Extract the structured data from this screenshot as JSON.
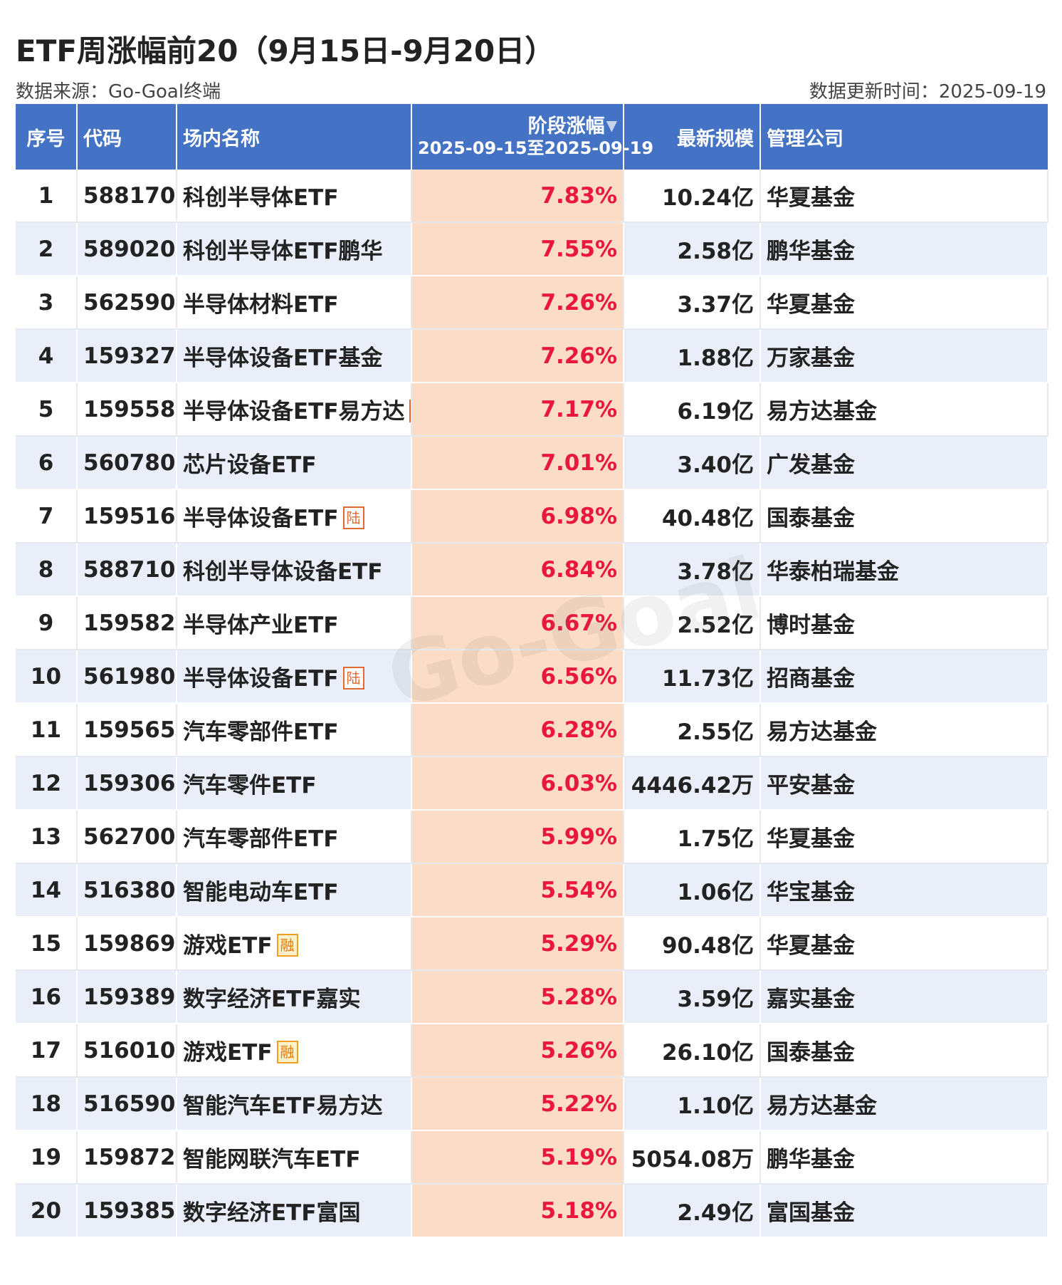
{
  "title": "ETF周涨幅前20（9月15日-9月20日）",
  "source": "数据来源：Go-Goal终端",
  "updated": "数据更新时间：2025-09-19",
  "watermark": "Go-Goal",
  "columns": {
    "rank": "序号",
    "code": "代码",
    "name": "场内名称",
    "period": "阶段涨幅",
    "period_range": "2025-09-15至2025-09-19",
    "scale": "最新规模",
    "manager": "管理公司"
  },
  "colors": {
    "header_bg": "#4472c4",
    "row_alt": "#e9eef8",
    "pct_bg": "#fbdcc6",
    "pct_text": "#e8173b"
  },
  "chart_data": {
    "type": "table",
    "title": "ETF周涨幅前20（9月15日-9月20日）",
    "rows": [
      {
        "rank": "1",
        "code": "588170",
        "name": "科创半导体ETF",
        "badge": "",
        "pct": "7.83%",
        "scale": "10.24亿",
        "manager": "华夏基金"
      },
      {
        "rank": "2",
        "code": "589020",
        "name": "科创半导体ETF鹏华",
        "badge": "",
        "pct": "7.55%",
        "scale": "2.58亿",
        "manager": "鹏华基金"
      },
      {
        "rank": "3",
        "code": "562590",
        "name": "半导体材料ETF",
        "badge": "",
        "pct": "7.26%",
        "scale": "3.37亿",
        "manager": "华夏基金"
      },
      {
        "rank": "4",
        "code": "159327",
        "name": "半导体设备ETF基金",
        "badge": "",
        "pct": "7.26%",
        "scale": "1.88亿",
        "manager": "万家基金"
      },
      {
        "rank": "5",
        "code": "159558",
        "name": "半导体设备ETF易方达",
        "badge": "陆",
        "pct": "7.17%",
        "scale": "6.19亿",
        "manager": "易方达基金"
      },
      {
        "rank": "6",
        "code": "560780",
        "name": "芯片设备ETF",
        "badge": "",
        "pct": "7.01%",
        "scale": "3.40亿",
        "manager": "广发基金"
      },
      {
        "rank": "7",
        "code": "159516",
        "name": "半导体设备ETF",
        "badge": "陆",
        "pct": "6.98%",
        "scale": "40.48亿",
        "manager": "国泰基金"
      },
      {
        "rank": "8",
        "code": "588710",
        "name": "科创半导体设备ETF",
        "badge": "",
        "pct": "6.84%",
        "scale": "3.78亿",
        "manager": "华泰柏瑞基金"
      },
      {
        "rank": "9",
        "code": "159582",
        "name": "半导体产业ETF",
        "badge": "",
        "pct": "6.67%",
        "scale": "2.52亿",
        "manager": "博时基金"
      },
      {
        "rank": "10",
        "code": "561980",
        "name": "半导体设备ETF",
        "badge": "陆",
        "pct": "6.56%",
        "scale": "11.73亿",
        "manager": "招商基金"
      },
      {
        "rank": "11",
        "code": "159565",
        "name": "汽车零部件ETF",
        "badge": "",
        "pct": "6.28%",
        "scale": "2.55亿",
        "manager": "易方达基金"
      },
      {
        "rank": "12",
        "code": "159306",
        "name": "汽车零件ETF",
        "badge": "",
        "pct": "6.03%",
        "scale": "4446.42万",
        "manager": "平安基金"
      },
      {
        "rank": "13",
        "code": "562700",
        "name": "汽车零部件ETF",
        "badge": "",
        "pct": "5.99%",
        "scale": "1.75亿",
        "manager": "华夏基金"
      },
      {
        "rank": "14",
        "code": "516380",
        "name": "智能电动车ETF",
        "badge": "",
        "pct": "5.54%",
        "scale": "1.06亿",
        "manager": "华宝基金"
      },
      {
        "rank": "15",
        "code": "159869",
        "name": "游戏ETF",
        "badge": "融",
        "pct": "5.29%",
        "scale": "90.48亿",
        "manager": "华夏基金"
      },
      {
        "rank": "16",
        "code": "159389",
        "name": "数字经济ETF嘉实",
        "badge": "",
        "pct": "5.28%",
        "scale": "3.59亿",
        "manager": "嘉实基金"
      },
      {
        "rank": "17",
        "code": "516010",
        "name": "游戏ETF",
        "badge": "融",
        "pct": "5.26%",
        "scale": "26.10亿",
        "manager": "国泰基金"
      },
      {
        "rank": "18",
        "code": "516590",
        "name": "智能汽车ETF易方达",
        "badge": "",
        "pct": "5.22%",
        "scale": "1.10亿",
        "manager": "易方达基金"
      },
      {
        "rank": "19",
        "code": "159872",
        "name": "智能网联汽车ETF",
        "badge": "",
        "pct": "5.19%",
        "scale": "5054.08万",
        "manager": "鹏华基金"
      },
      {
        "rank": "20",
        "code": "159385",
        "name": "数字经济ETF富国",
        "badge": "",
        "pct": "5.18%",
        "scale": "2.49亿",
        "manager": "富国基金"
      }
    ]
  }
}
